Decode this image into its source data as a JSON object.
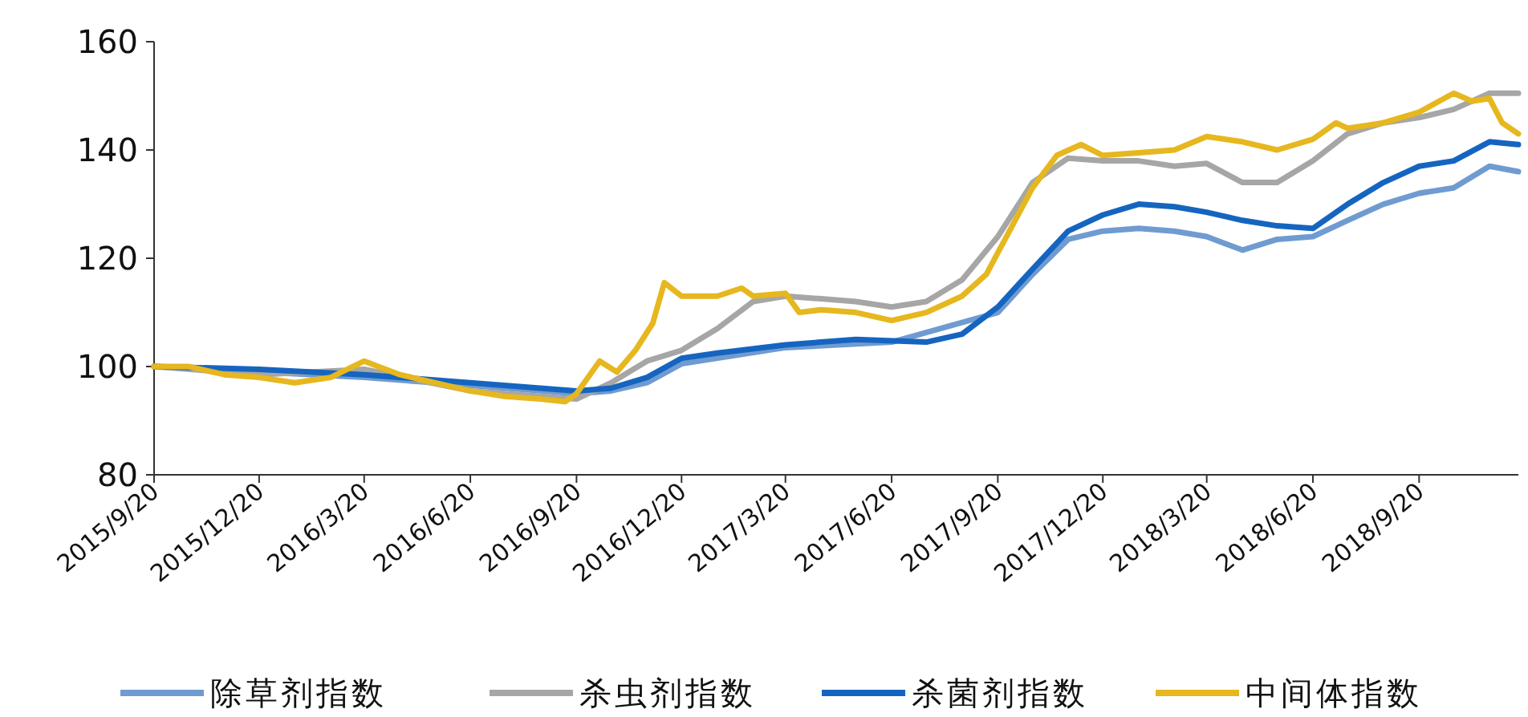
{
  "chart_data": {
    "type": "line",
    "xlim": [
      "2015-09-20",
      "2018-12-15"
    ],
    "ylim": [
      80,
      160
    ],
    "yticks": [
      80,
      100,
      120,
      140,
      160
    ],
    "xticks": [
      {
        "value": "2015-09-20",
        "label": "2015/9/20"
      },
      {
        "value": "2015-12-20",
        "label": "2015/12/20"
      },
      {
        "value": "2016-03-20",
        "label": "2016/3/20"
      },
      {
        "value": "2016-06-20",
        "label": "2016/6/20"
      },
      {
        "value": "2016-09-20",
        "label": "2016/9/20"
      },
      {
        "value": "2016-12-20",
        "label": "2016/12/20"
      },
      {
        "value": "2017-03-20",
        "label": "2017/3/20"
      },
      {
        "value": "2017-06-20",
        "label": "2017/6/20"
      },
      {
        "value": "2017-09-20",
        "label": "2017/9/20"
      },
      {
        "value": "2017-12-20",
        "label": "2017/12/20"
      },
      {
        "value": "2018-03-20",
        "label": "2018/3/20"
      },
      {
        "value": "2018-06-20",
        "label": "2018/6/20"
      },
      {
        "value": "2018-09-20",
        "label": "2018/9/20"
      }
    ],
    "grid": false,
    "legend": "bottom",
    "marker": "none",
    "line_style": "solid",
    "series": [
      {
        "name": "除草剂指数",
        "color": "#6f9bd1",
        "x": [
          "2015-09-20",
          "2015-12-20",
          "2016-03-20",
          "2016-06-20",
          "2016-09-20",
          "2016-10-20",
          "2016-11-20",
          "2016-12-20",
          "2017-03-20",
          "2017-06-20",
          "2017-09-20",
          "2017-10-20",
          "2017-11-20",
          "2017-12-20",
          "2018-01-20",
          "2018-02-20",
          "2018-03-20",
          "2018-04-20",
          "2018-05-20",
          "2018-06-20",
          "2018-07-20",
          "2018-08-20",
          "2018-09-20",
          "2018-10-20",
          "2018-11-20",
          "2018-12-15"
        ],
        "values": [
          100,
          99,
          98,
          96.5,
          95,
          95.5,
          97,
          100.5,
          103.5,
          104.5,
          110,
          117,
          123.5,
          125,
          125.5,
          125,
          124,
          121.5,
          123.5,
          124,
          127,
          130,
          132,
          133,
          137,
          136
        ]
      },
      {
        "name": "杀虫剂指数",
        "color": "#a6a6a6",
        "x": [
          "2015-09-20",
          "2015-12-20",
          "2016-03-20",
          "2016-06-20",
          "2016-09-20",
          "2016-10-20",
          "2016-11-20",
          "2016-12-20",
          "2017-01-20",
          "2017-02-20",
          "2017-03-20",
          "2017-04-20",
          "2017-05-20",
          "2017-06-20",
          "2017-07-20",
          "2017-08-20",
          "2017-09-20",
          "2017-10-20",
          "2017-11-20",
          "2017-12-20",
          "2018-01-20",
          "2018-02-20",
          "2018-03-20",
          "2018-04-20",
          "2018-05-20",
          "2018-06-20",
          "2018-07-20",
          "2018-08-20",
          "2018-09-20",
          "2018-10-20",
          "2018-11-20",
          "2018-12-15"
        ],
        "values": [
          100,
          98.5,
          99.5,
          95.5,
          94,
          97,
          101,
          103,
          107,
          112,
          113,
          112.5,
          112,
          111,
          112,
          116,
          124,
          134,
          138.5,
          138,
          138,
          137,
          137.5,
          134,
          134,
          138,
          143,
          145,
          146,
          147.5,
          150.5,
          150.5
        ]
      },
      {
        "name": "杀菌剂指数",
        "color": "#1565c0",
        "x": [
          "2015-09-20",
          "2015-12-20",
          "2016-03-20",
          "2016-06-20",
          "2016-09-20",
          "2016-10-20",
          "2016-11-20",
          "2016-12-20",
          "2017-01-20",
          "2017-03-20",
          "2017-05-20",
          "2017-07-20",
          "2017-08-20",
          "2017-09-20",
          "2017-10-20",
          "2017-11-20",
          "2017-12-20",
          "2018-01-20",
          "2018-02-20",
          "2018-03-20",
          "2018-04-20",
          "2018-05-20",
          "2018-06-20",
          "2018-07-20",
          "2018-08-20",
          "2018-09-20",
          "2018-10-20",
          "2018-11-20",
          "2018-12-15"
        ],
        "values": [
          100,
          99.5,
          98.5,
          97,
          95.5,
          96,
          98,
          101.5,
          102.5,
          104,
          105,
          104.5,
          106,
          111,
          118,
          125,
          128,
          130,
          129.5,
          128.5,
          127,
          126,
          125.5,
          130,
          134,
          137,
          138,
          141.5,
          141
        ]
      },
      {
        "name": "中间体指数",
        "color": "#e6b71e",
        "x": [
          "2015-09-20",
          "2015-10-20",
          "2015-11-20",
          "2015-12-20",
          "2016-01-20",
          "2016-02-20",
          "2016-03-20",
          "2016-04-20",
          "2016-05-20",
          "2016-06-20",
          "2016-07-20",
          "2016-08-20",
          "2016-09-10",
          "2016-09-20",
          "2016-10-10",
          "2016-10-25",
          "2016-11-10",
          "2016-11-25",
          "2016-12-05",
          "2016-12-20",
          "2017-01-20",
          "2017-02-10",
          "2017-02-20",
          "2017-03-20",
          "2017-04-01",
          "2017-04-20",
          "2017-05-20",
          "2017-06-20",
          "2017-07-20",
          "2017-08-20",
          "2017-09-10",
          "2017-09-20",
          "2017-10-20",
          "2017-11-10",
          "2017-12-01",
          "2017-12-20",
          "2018-01-20",
          "2018-02-20",
          "2018-03-20",
          "2018-04-20",
          "2018-05-20",
          "2018-06-20",
          "2018-07-10",
          "2018-07-20",
          "2018-08-20",
          "2018-09-20",
          "2018-10-20",
          "2018-11-05",
          "2018-11-20",
          "2018-12-01",
          "2018-12-15"
        ],
        "values": [
          100,
          100,
          98.5,
          98,
          97,
          98,
          101,
          98.5,
          97,
          95.5,
          94.5,
          94,
          93.5,
          95,
          101,
          99,
          103,
          108,
          115.5,
          113,
          113,
          114.5,
          113,
          113.5,
          110,
          110.5,
          110,
          108.5,
          110,
          113,
          117,
          121,
          133,
          139,
          141,
          139,
          139.5,
          140,
          142.5,
          141.5,
          140,
          142,
          145,
          144,
          145,
          147,
          150.5,
          149,
          149.5,
          145,
          143
        ]
      }
    ]
  }
}
